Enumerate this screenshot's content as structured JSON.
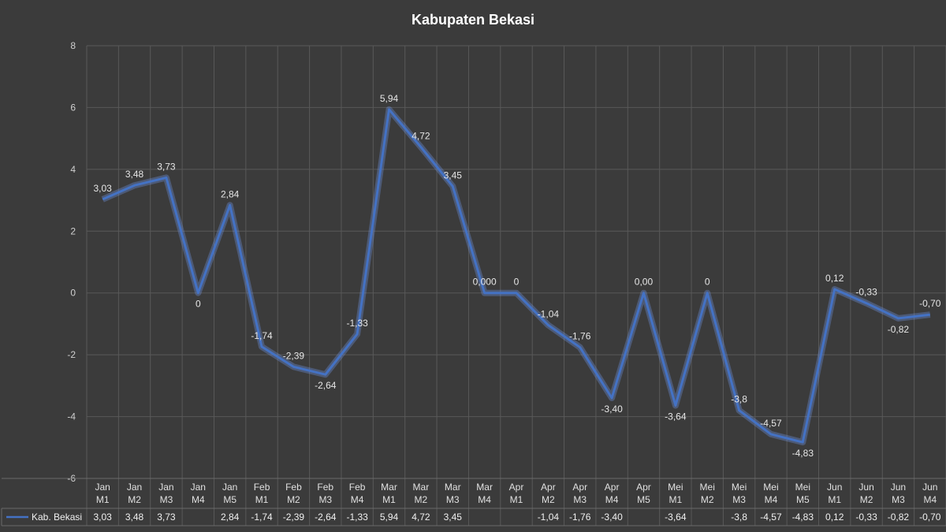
{
  "chart_data": {
    "type": "line",
    "title": "Kabupaten Bekasi",
    "xlabel": "",
    "ylabel": "",
    "ylim": [
      -6,
      8
    ],
    "yticks": [
      8,
      6,
      4,
      2,
      0,
      -2,
      -4,
      -6
    ],
    "grid": true,
    "legend": "bottom-left (data table)",
    "line_color": "#4472c4",
    "categories": [
      [
        "Jan",
        "M1"
      ],
      [
        "Jan",
        "M2"
      ],
      [
        "Jan",
        "M3"
      ],
      [
        "Jan",
        "M4"
      ],
      [
        "Jan",
        "M5"
      ],
      [
        "Feb",
        "M1"
      ],
      [
        "Feb",
        "M2"
      ],
      [
        "Feb",
        "M3"
      ],
      [
        "Feb",
        "M4"
      ],
      [
        "Mar",
        "M1"
      ],
      [
        "Mar",
        "M2"
      ],
      [
        "Mar",
        "M3"
      ],
      [
        "Mar",
        "M4"
      ],
      [
        "Apr",
        "M1"
      ],
      [
        "Apr",
        "M2"
      ],
      [
        "Apr",
        "M3"
      ],
      [
        "Apr",
        "M4"
      ],
      [
        "Apr",
        "M5"
      ],
      [
        "Mei",
        "M1"
      ],
      [
        "Mei",
        "M2"
      ],
      [
        "Mei",
        "M3"
      ],
      [
        "Mei",
        "M4"
      ],
      [
        "Mei",
        "M5"
      ],
      [
        "Jun",
        "M1"
      ],
      [
        "Jun",
        "M2"
      ],
      [
        "Jun",
        "M3"
      ],
      [
        "Jun",
        "M4"
      ]
    ],
    "series": [
      {
        "name": "Kab. Bekasi",
        "values": [
          3.03,
          3.48,
          3.73,
          0,
          2.84,
          -1.74,
          -2.39,
          -2.64,
          -1.33,
          5.94,
          4.72,
          3.45,
          0,
          0,
          -1.04,
          -1.76,
          -3.4,
          0,
          -3.64,
          0,
          -3.8,
          -4.57,
          -4.83,
          0.12,
          -0.33,
          -0.82,
          -0.7
        ],
        "point_labels": [
          "3,03",
          "3,48",
          "3,73",
          "0",
          "2,84",
          "-1,74",
          "-2,39",
          "-2,64",
          "-1,33",
          "5,94",
          "4,72",
          "3,45",
          "0,000",
          "0",
          "-1,04",
          "-1,76",
          "-3,40",
          "0,00",
          "-3,64",
          "0",
          "-3,8",
          "-4,57",
          "-4,83",
          "0,12",
          "-0,33",
          "-0,82",
          "-0,70"
        ],
        "table_cells": [
          "3,03",
          "3,48",
          "3,73",
          "",
          "2,84",
          "-1,74",
          "-2,39",
          "-2,64",
          "-1,33",
          "5,94",
          "4,72",
          "3,45",
          "",
          "",
          "-1,04",
          "-1,76",
          "-3,40",
          "",
          "-3,64",
          "",
          "-3,8",
          "-4,57",
          "-4,83",
          "0,12",
          "-0,33",
          "-0,82",
          "-0,70"
        ]
      }
    ]
  }
}
